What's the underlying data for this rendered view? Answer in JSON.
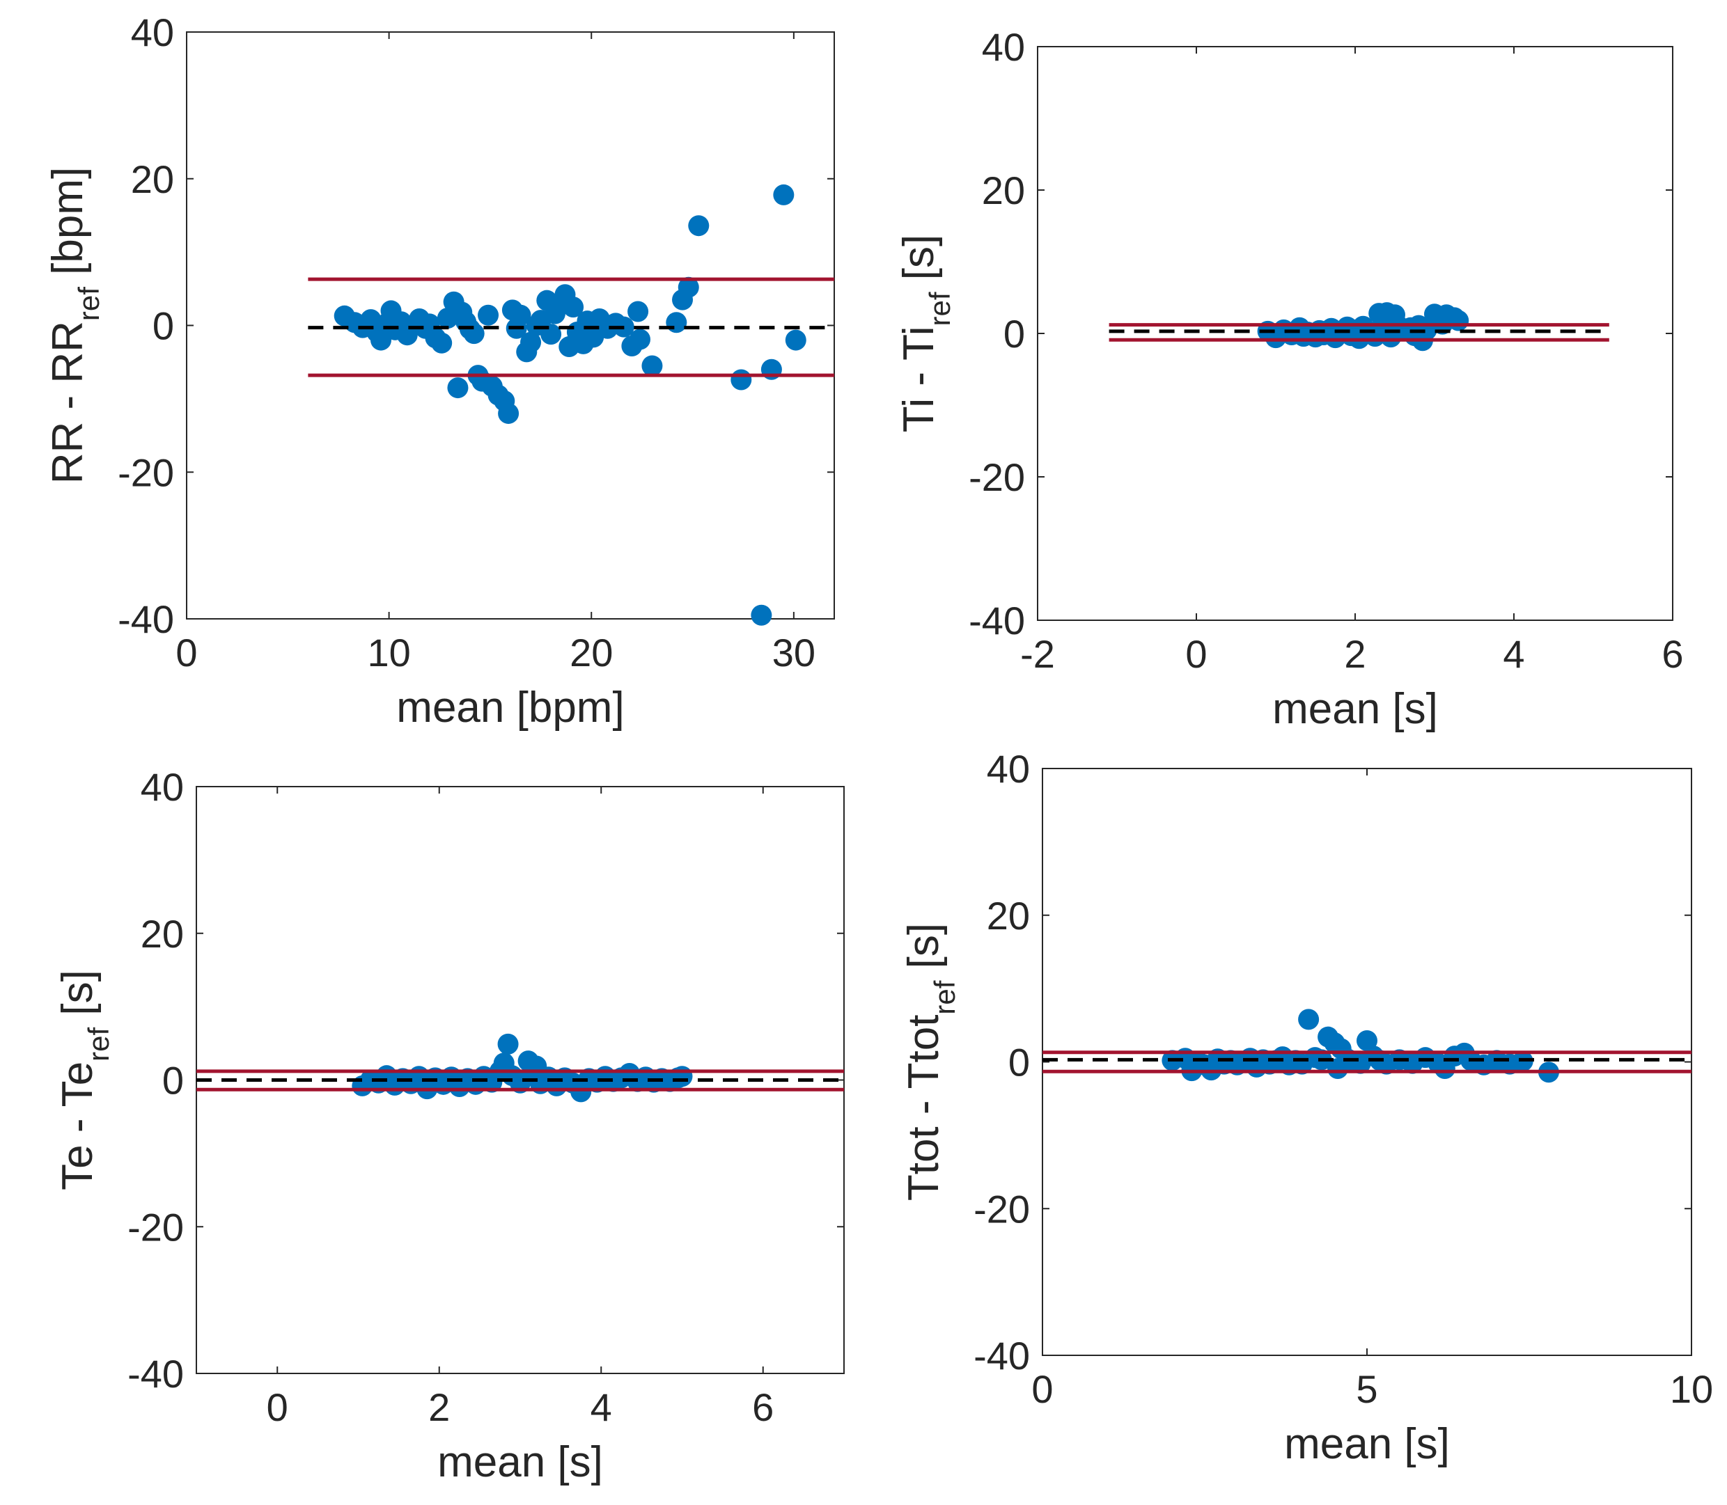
{
  "colors": {
    "points": "#0072BD",
    "limits": "#A2142F",
    "bias": "#000000",
    "axes": "#262626"
  },
  "chart_data": [
    {
      "type": "scatter",
      "panel": "top-left",
      "xlabel": "mean [bpm]",
      "ylabel": {
        "main": "RR - RR",
        "sub": "ref",
        "unit": " [bpm]"
      },
      "xlim": [
        0,
        32
      ],
      "ylim": [
        -40,
        40
      ],
      "xticks": [
        0,
        10,
        20,
        30
      ],
      "yticks": [
        -40,
        -20,
        0,
        20,
        40
      ],
      "bias": -0.3,
      "loa": [
        6.3,
        -6.8
      ],
      "line_x": [
        6,
        32
      ],
      "points": [
        [
          7.8,
          1.3
        ],
        [
          8.3,
          0.4
        ],
        [
          8.7,
          -0.3
        ],
        [
          9.1,
          0.8
        ],
        [
          9.4,
          -0.9
        ],
        [
          9.6,
          -2.0
        ],
        [
          9.9,
          0.3
        ],
        [
          10.1,
          2.0
        ],
        [
          10.3,
          -0.6
        ],
        [
          10.6,
          0.5
        ],
        [
          10.9,
          -1.3
        ],
        [
          11.2,
          0.0
        ],
        [
          11.5,
          0.9
        ],
        [
          11.8,
          -0.4
        ],
        [
          12.0,
          0.2
        ],
        [
          12.3,
          -1.7
        ],
        [
          12.6,
          -2.4
        ],
        [
          12.9,
          1.0
        ],
        [
          13.2,
          3.2
        ],
        [
          13.4,
          -8.5
        ],
        [
          13.6,
          1.8
        ],
        [
          13.8,
          0.5
        ],
        [
          14.0,
          -0.5
        ],
        [
          14.2,
          -1.1
        ],
        [
          14.4,
          -6.8
        ],
        [
          14.6,
          -7.6
        ],
        [
          14.9,
          1.4
        ],
        [
          15.1,
          -8.3
        ],
        [
          15.4,
          -9.5
        ],
        [
          15.7,
          -10.3
        ],
        [
          15.9,
          -12.0
        ],
        [
          16.1,
          2.1
        ],
        [
          16.3,
          -0.4
        ],
        [
          16.5,
          1.4
        ],
        [
          16.8,
          -3.6
        ],
        [
          17.0,
          -2.3
        ],
        [
          17.3,
          0.0
        ],
        [
          17.5,
          0.7
        ],
        [
          17.8,
          3.4
        ],
        [
          18.0,
          -1.2
        ],
        [
          18.2,
          1.6
        ],
        [
          18.5,
          2.9
        ],
        [
          18.7,
          4.2
        ],
        [
          18.9,
          -2.9
        ],
        [
          19.1,
          2.5
        ],
        [
          19.3,
          -0.9
        ],
        [
          19.6,
          -2.5
        ],
        [
          19.8,
          0.6
        ],
        [
          20.1,
          -1.6
        ],
        [
          20.4,
          0.9
        ],
        [
          20.8,
          -0.4
        ],
        [
          21.2,
          0.3
        ],
        [
          21.6,
          -0.2
        ],
        [
          22.0,
          -2.8
        ],
        [
          22.4,
          -1.9
        ],
        [
          22.3,
          1.9
        ],
        [
          23.0,
          -5.5
        ],
        [
          24.2,
          0.4
        ],
        [
          24.5,
          3.5
        ],
        [
          24.8,
          5.2
        ],
        [
          25.3,
          13.6
        ],
        [
          27.4,
          -7.4
        ],
        [
          28.4,
          -39.5
        ],
        [
          28.9,
          -6.0
        ],
        [
          29.5,
          17.8
        ],
        [
          30.1,
          -2.0
        ]
      ]
    },
    {
      "type": "scatter",
      "panel": "top-right",
      "xlabel": "mean [s]",
      "ylabel": {
        "main": "Ti - Ti",
        "sub": "ref",
        "unit": " [s]"
      },
      "xlim": [
        -2,
        6
      ],
      "ylim": [
        -40,
        40
      ],
      "xticks": [
        -2,
        0,
        2,
        4,
        6
      ],
      "yticks": [
        -40,
        -20,
        0,
        20,
        40
      ],
      "bias": 0.3,
      "loa": [
        1.2,
        -0.9
      ],
      "line_x": [
        -1.1,
        5.2
      ],
      "points": [
        [
          0.9,
          0.3
        ],
        [
          1.0,
          -0.6
        ],
        [
          1.1,
          0.5
        ],
        [
          1.2,
          -0.2
        ],
        [
          1.3,
          0.8
        ],
        [
          1.35,
          -0.4
        ],
        [
          1.4,
          0.2
        ],
        [
          1.5,
          -0.5
        ],
        [
          1.55,
          0.4
        ],
        [
          1.6,
          -0.2
        ],
        [
          1.7,
          0.7
        ],
        [
          1.75,
          -0.6
        ],
        [
          1.8,
          0.3
        ],
        [
          1.9,
          0.9
        ],
        [
          1.95,
          -0.3
        ],
        [
          2.0,
          0.5
        ],
        [
          2.05,
          -0.7
        ],
        [
          2.1,
          1.0
        ],
        [
          2.2,
          0.2
        ],
        [
          2.25,
          -0.4
        ],
        [
          2.3,
          2.8
        ],
        [
          2.35,
          0.6
        ],
        [
          2.4,
          2.9
        ],
        [
          2.45,
          -0.5
        ],
        [
          2.5,
          2.6
        ],
        [
          2.55,
          1.0
        ],
        [
          2.6,
          0.4
        ],
        [
          2.7,
          0.8
        ],
        [
          2.75,
          -0.3
        ],
        [
          2.8,
          1.1
        ],
        [
          2.85,
          -1.0
        ],
        [
          2.9,
          0.5
        ],
        [
          3.0,
          2.7
        ],
        [
          3.1,
          1.3
        ],
        [
          3.15,
          2.6
        ],
        [
          3.25,
          2.2
        ],
        [
          3.3,
          1.8
        ]
      ]
    },
    {
      "type": "scatter",
      "panel": "bottom-left",
      "xlabel": "mean [s]",
      "ylabel": {
        "main": "Te - Te",
        "sub": "ref",
        "unit": " [s]"
      },
      "xlim": [
        -1,
        7
      ],
      "ylim": [
        -40,
        40
      ],
      "xticks": [
        0,
        2,
        4,
        6
      ],
      "yticks": [
        -40,
        -20,
        0,
        20,
        40
      ],
      "bias": 0.0,
      "loa": [
        1.2,
        -1.3
      ],
      "line_x": [
        -1,
        7
      ],
      "points": [
        [
          1.05,
          -0.8
        ],
        [
          1.15,
          0.0
        ],
        [
          1.25,
          -0.4
        ],
        [
          1.35,
          0.6
        ],
        [
          1.45,
          -0.7
        ],
        [
          1.55,
          0.2
        ],
        [
          1.65,
          -0.5
        ],
        [
          1.75,
          0.5
        ],
        [
          1.85,
          -1.2
        ],
        [
          1.95,
          0.3
        ],
        [
          2.05,
          -0.6
        ],
        [
          2.15,
          0.4
        ],
        [
          2.25,
          -0.9
        ],
        [
          2.35,
          0.2
        ],
        [
          2.45,
          -0.6
        ],
        [
          2.55,
          0.5
        ],
        [
          2.65,
          -0.3
        ],
        [
          2.75,
          1.2
        ],
        [
          2.8,
          2.3
        ],
        [
          2.85,
          4.9
        ],
        [
          2.9,
          0.6
        ],
        [
          3.0,
          -0.4
        ],
        [
          3.1,
          2.6
        ],
        [
          3.15,
          0.8
        ],
        [
          3.2,
          1.9
        ],
        [
          3.25,
          -0.5
        ],
        [
          3.35,
          0.4
        ],
        [
          3.45,
          -0.8
        ],
        [
          3.55,
          0.3
        ],
        [
          3.65,
          -0.4
        ],
        [
          3.75,
          -1.6
        ],
        [
          3.85,
          0.2
        ],
        [
          3.95,
          -0.3
        ],
        [
          4.05,
          0.5
        ],
        [
          4.15,
          -0.2
        ],
        [
          4.25,
          0.3
        ],
        [
          4.35,
          0.9
        ],
        [
          4.45,
          -0.2
        ],
        [
          4.55,
          0.4
        ],
        [
          4.65,
          -0.3
        ],
        [
          4.75,
          0.2
        ],
        [
          4.85,
          -0.2
        ],
        [
          4.95,
          0.3
        ],
        [
          5.0,
          0.5
        ]
      ]
    },
    {
      "type": "scatter",
      "panel": "bottom-right",
      "xlabel": "mean [s]",
      "ylabel": {
        "main": "Ttot - Ttot",
        "sub": "ref",
        "unit": " [s]"
      },
      "xlim": [
        0,
        10
      ],
      "ylim": [
        -40,
        40
      ],
      "xticks": [
        0,
        5,
        10
      ],
      "yticks": [
        -40,
        -20,
        0,
        20,
        40
      ],
      "bias": 0.3,
      "loa": [
        1.3,
        -1.3
      ],
      "line_x": [
        0,
        10
      ],
      "points": [
        [
          2.0,
          0.2
        ],
        [
          2.2,
          0.5
        ],
        [
          2.3,
          -1.2
        ],
        [
          2.4,
          0.0
        ],
        [
          2.5,
          -0.4
        ],
        [
          2.6,
          -1.1
        ],
        [
          2.7,
          0.4
        ],
        [
          2.8,
          -0.3
        ],
        [
          2.9,
          0.2
        ],
        [
          3.0,
          -0.4
        ],
        [
          3.1,
          0.1
        ],
        [
          3.2,
          0.5
        ],
        [
          3.3,
          -0.7
        ],
        [
          3.4,
          0.3
        ],
        [
          3.5,
          -0.3
        ],
        [
          3.6,
          0.2
        ],
        [
          3.7,
          0.7
        ],
        [
          3.8,
          -0.4
        ],
        [
          3.9,
          0.2
        ],
        [
          4.0,
          -0.3
        ],
        [
          4.1,
          5.8
        ],
        [
          4.2,
          0.6
        ],
        [
          4.3,
          0.3
        ],
        [
          4.4,
          3.4
        ],
        [
          4.5,
          2.6
        ],
        [
          4.55,
          -0.9
        ],
        [
          4.6,
          1.8
        ],
        [
          4.7,
          0.4
        ],
        [
          4.8,
          0.1
        ],
        [
          4.9,
          -0.2
        ],
        [
          5.0,
          2.9
        ],
        [
          5.1,
          0.8
        ],
        [
          5.2,
          0.2
        ],
        [
          5.3,
          -0.3
        ],
        [
          5.5,
          0.3
        ],
        [
          5.7,
          -0.2
        ],
        [
          5.9,
          0.6
        ],
        [
          6.1,
          -0.2
        ],
        [
          6.2,
          -0.9
        ],
        [
          6.35,
          0.8
        ],
        [
          6.5,
          1.2
        ],
        [
          6.6,
          0.2
        ],
        [
          6.8,
          -0.4
        ],
        [
          7.0,
          0.2
        ],
        [
          7.2,
          -0.3
        ],
        [
          7.4,
          0.1
        ],
        [
          7.8,
          -1.4
        ]
      ]
    }
  ]
}
